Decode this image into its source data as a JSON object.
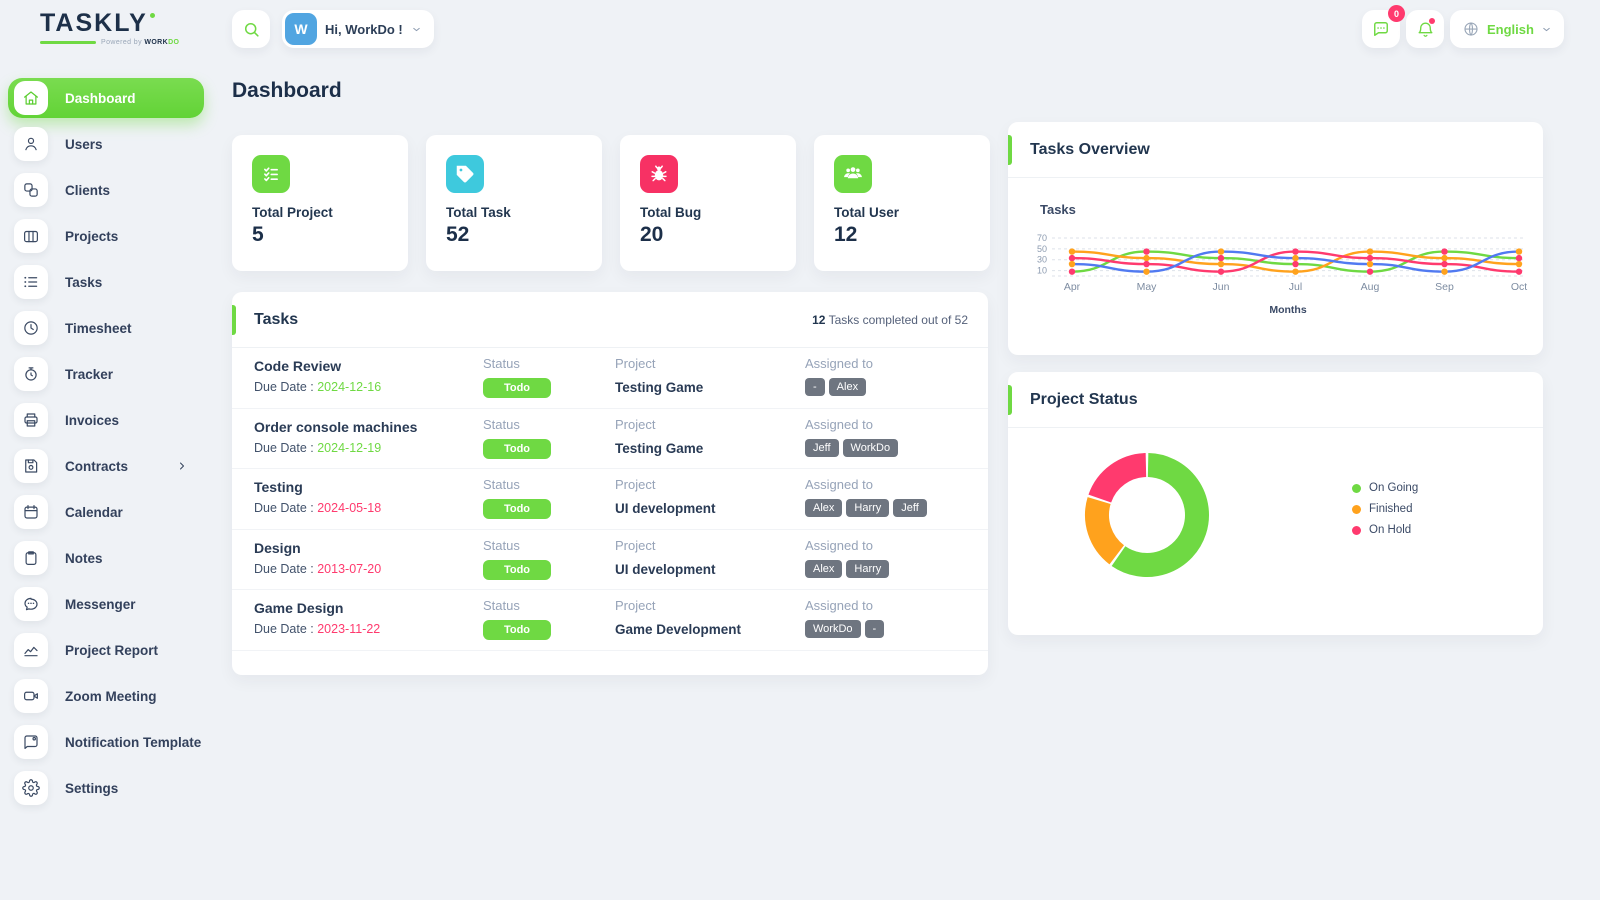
{
  "header": {
    "logo": {
      "part1": "TASK",
      "part2": "LY",
      "powered_prefix": "Powered by",
      "brand_part1": "WORK",
      "brand_part2": "DO"
    },
    "user": {
      "initial": "W",
      "greeting": "Hi, WorkDo !"
    },
    "messages_badge": "0",
    "language": "English"
  },
  "sidebar": {
    "items": [
      {
        "label": "Dashboard",
        "icon": "home",
        "active": true
      },
      {
        "label": "Users",
        "icon": "user"
      },
      {
        "label": "Clients",
        "icon": "clients"
      },
      {
        "label": "Projects",
        "icon": "projects"
      },
      {
        "label": "Tasks",
        "icon": "tasks"
      },
      {
        "label": "Timesheet",
        "icon": "timesheet"
      },
      {
        "label": "Tracker",
        "icon": "tracker"
      },
      {
        "label": "Invoices",
        "icon": "invoices"
      },
      {
        "label": "Contracts",
        "icon": "contracts",
        "has_submenu": true
      },
      {
        "label": "Calendar",
        "icon": "calendar"
      },
      {
        "label": "Notes",
        "icon": "notes"
      },
      {
        "label": "Messenger",
        "icon": "messenger"
      },
      {
        "label": "Project Report",
        "icon": "project-report"
      },
      {
        "label": "Zoom Meeting",
        "icon": "zoom-meeting"
      },
      {
        "label": "Notification Template",
        "icon": "notification-template"
      },
      {
        "label": "Settings",
        "icon": "settings"
      }
    ]
  },
  "page": {
    "title": "Dashboard"
  },
  "stats": [
    {
      "label": "Total Project",
      "value": "5",
      "icon": "checklist",
      "color": "#6fd943"
    },
    {
      "label": "Total Task",
      "value": "52",
      "icon": "tag",
      "color": "#3ec9dd"
    },
    {
      "label": "Total Bug",
      "value": "20",
      "icon": "bug",
      "color": "#f73164"
    },
    {
      "label": "Total User",
      "value": "12",
      "icon": "users",
      "color": "#6fd943"
    }
  ],
  "tasks_card": {
    "title": "Tasks",
    "completed_bold": "12",
    "completed_rest": " Tasks completed out of 52",
    "due_label": "Due Date : ",
    "col_status": "Status",
    "col_project": "Project",
    "col_assigned": "Assigned to",
    "rows": [
      {
        "name": "Code Review",
        "due": "2024-12-16",
        "due_color": "#6fd943",
        "status": "Todo",
        "project": "Testing Game",
        "assignees": [
          "-",
          "Alex"
        ]
      },
      {
        "name": "Order console machines",
        "due": "2024-12-19",
        "due_color": "#6fd943",
        "status": "Todo",
        "project": "Testing Game",
        "assignees": [
          "Jeff",
          "WorkDo"
        ]
      },
      {
        "name": "Testing",
        "due": "2024-05-18",
        "due_color": "#ff3a6e",
        "status": "Todo",
        "project": "UI development",
        "assignees": [
          "Alex",
          "Harry",
          "Jeff"
        ]
      },
      {
        "name": "Design",
        "due": "2013-07-20",
        "due_color": "#ff3a6e",
        "status": "Todo",
        "project": "UI development",
        "assignees": [
          "Alex",
          "Harry"
        ]
      },
      {
        "name": "Game Design",
        "due": "2023-11-22",
        "due_color": "#ff3a6e",
        "status": "Todo",
        "project": "Game Development",
        "assignees": [
          "WorkDo",
          "-"
        ]
      }
    ]
  },
  "chart_data": [
    {
      "id": "tasks-overview",
      "type": "line",
      "title": "Tasks Overview",
      "axis_title": "Tasks",
      "xlabel": "Months",
      "x": [
        "Apr",
        "May",
        "Jun",
        "Jul",
        "Aug",
        "Sep",
        "Oct"
      ],
      "yticks": [
        10,
        30,
        50,
        70
      ],
      "ylim": [
        0,
        75
      ],
      "grid": "dashed-horizontal",
      "series": [
        {
          "name": "series-green",
          "color": "#6fd943",
          "values": [
            8,
            45,
            33,
            22,
            8,
            45,
            33
          ]
        },
        {
          "name": "series-orange",
          "color": "#ffa21d",
          "values": [
            45,
            33,
            22,
            8,
            45,
            33,
            22
          ]
        },
        {
          "name": "series-pink",
          "color": "#ff3a6e",
          "values": [
            33,
            22,
            8,
            45,
            33,
            22,
            8
          ]
        },
        {
          "name": "series-blue",
          "color": "#517af1",
          "values": [
            22,
            8,
            45,
            33,
            22,
            8,
            45
          ]
        }
      ],
      "marker_colors": [
        "#ffa21d",
        "#ff3a6e"
      ]
    },
    {
      "id": "project-status",
      "type": "pie",
      "donut": true,
      "title": "Project Status",
      "labels": [
        "On Going",
        "Finished",
        "On Hold"
      ],
      "values": [
        60,
        20,
        20
      ],
      "colors": [
        "#6fd943",
        "#ffa21d",
        "#ff3a6e"
      ],
      "legend_position": "right"
    }
  ]
}
